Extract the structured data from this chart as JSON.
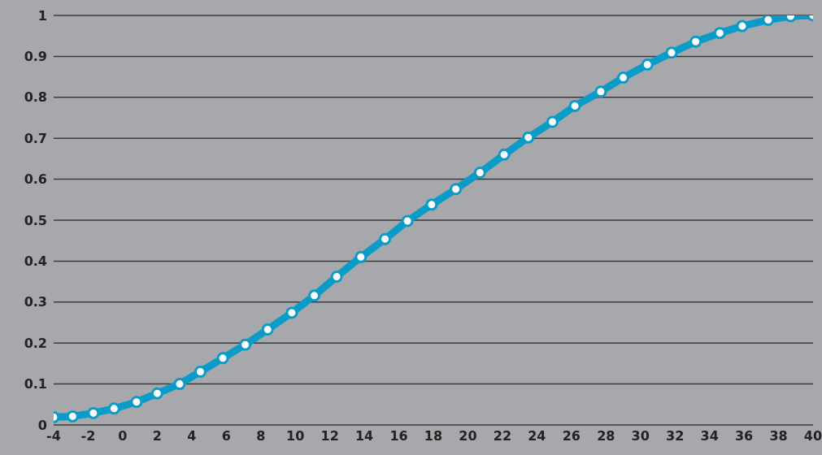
{
  "chart_data": {
    "type": "line",
    "x": [
      -4,
      -2.9,
      -1.7,
      -0.5,
      0.8,
      2,
      3.3,
      4.5,
      5.8,
      7.1,
      8.4,
      9.8,
      11.1,
      12.4,
      13.8,
      15.2,
      16.5,
      17.9,
      19.3,
      20.7,
      22.1,
      23.5,
      24.9,
      26.2,
      27.7,
      29,
      30.4,
      31.8,
      33.2,
      34.6,
      35.9,
      37.4,
      38.7,
      40
    ],
    "series": [
      {
        "color": "#0a9cc8",
        "values": [
          0.019,
          0.021,
          0.029,
          0.04,
          0.056,
          0.077,
          0.1,
          0.13,
          0.163,
          0.196,
          0.233,
          0.274,
          0.316,
          0.362,
          0.41,
          0.454,
          0.498,
          0.538,
          0.576,
          0.616,
          0.66,
          0.702,
          0.74,
          0.779,
          0.814,
          0.848,
          0.88,
          0.909,
          0.936,
          0.957,
          0.974,
          0.989,
          0.998,
          1
        ]
      }
    ],
    "xlim": [
      -4,
      40
    ],
    "xticks": [
      -4,
      -2,
      0,
      2,
      4,
      6,
      8,
      10,
      12,
      14,
      16,
      18,
      20,
      22,
      24,
      26,
      28,
      30,
      32,
      34,
      36,
      38,
      40
    ],
    "ylim": [
      0,
      1
    ],
    "yticks": [
      0,
      0.1,
      0.2,
      0.3,
      0.4,
      0.5,
      0.6,
      0.7,
      0.8,
      0.9,
      1
    ],
    "grid": "y",
    "marker": "circle",
    "line_style": "solid",
    "legend": false
  }
}
